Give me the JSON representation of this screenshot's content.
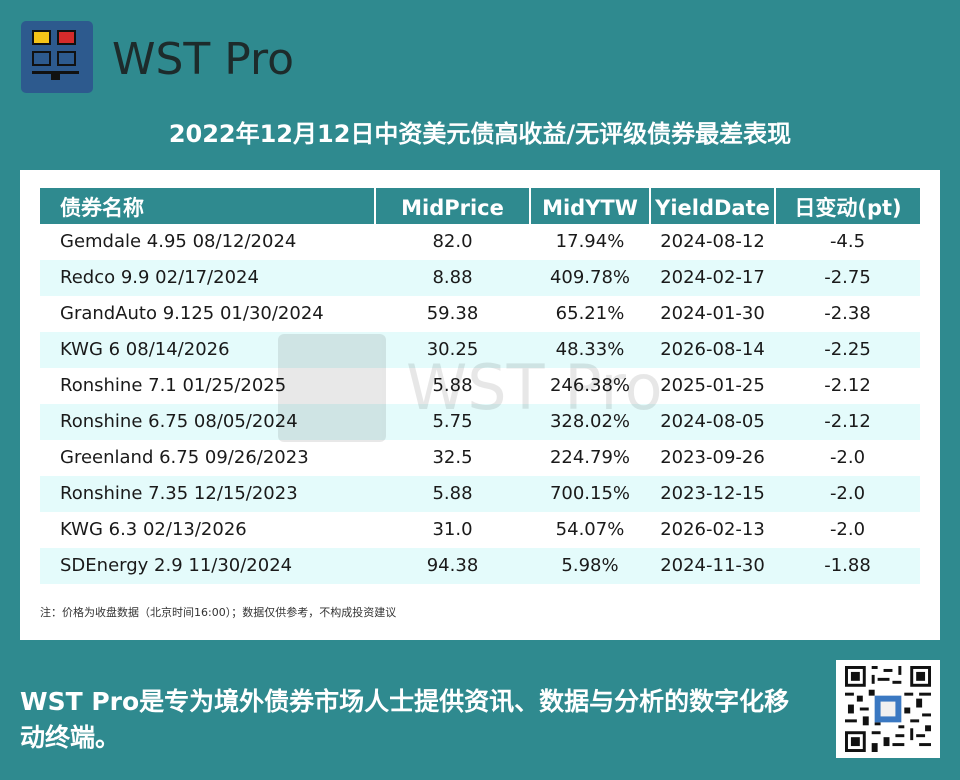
{
  "brand": {
    "name": "WST Pro",
    "logo_colors": [
      "#f5c518",
      "#d42b2b",
      "#2d5a8e",
      "#111111"
    ]
  },
  "title": "2022年12月12日中资美元债高收益/无评级债券最差表现",
  "table": {
    "columns": [
      "债券名称",
      "MidPrice",
      "MidYTW",
      "YieldDate",
      "日变动(pt)"
    ],
    "rows": [
      {
        "name": "Gemdale 4.95 08/12/2024",
        "mid_price": "82.0",
        "mid_ytw": "17.94%",
        "yield_date": "2024-08-12",
        "change": "-4.5"
      },
      {
        "name": "Redco 9.9 02/17/2024",
        "mid_price": "8.88",
        "mid_ytw": "409.78%",
        "yield_date": "2024-02-17",
        "change": "-2.75"
      },
      {
        "name": "GrandAuto 9.125 01/30/2024",
        "mid_price": "59.38",
        "mid_ytw": "65.21%",
        "yield_date": "2024-01-30",
        "change": "-2.38"
      },
      {
        "name": "KWG 6 08/14/2026",
        "mid_price": "30.25",
        "mid_ytw": "48.33%",
        "yield_date": "2026-08-14",
        "change": "-2.25"
      },
      {
        "name": "Ronshine 7.1 01/25/2025",
        "mid_price": "5.88",
        "mid_ytw": "246.38%",
        "yield_date": "2025-01-25",
        "change": "-2.12"
      },
      {
        "name": "Ronshine 6.75 08/05/2024",
        "mid_price": "5.75",
        "mid_ytw": "328.02%",
        "yield_date": "2024-08-05",
        "change": "-2.12"
      },
      {
        "name": "Greenland 6.75 09/26/2023",
        "mid_price": "32.5",
        "mid_ytw": "224.79%",
        "yield_date": "2023-09-26",
        "change": "-2.0"
      },
      {
        "name": "Ronshine 7.35 12/15/2023",
        "mid_price": "5.88",
        "mid_ytw": "700.15%",
        "yield_date": "2023-12-15",
        "change": "-2.0"
      },
      {
        "name": "KWG 6.3 02/13/2026",
        "mid_price": "31.0",
        "mid_ytw": "54.07%",
        "yield_date": "2026-02-13",
        "change": "-2.0"
      },
      {
        "name": "SDEnergy 2.9 11/30/2024",
        "mid_price": "94.38",
        "mid_ytw": "5.98%",
        "yield_date": "2024-11-30",
        "change": "-1.88"
      }
    ]
  },
  "watermark": "WST Pro",
  "note": "注：价格为收盘数据（北京时间16:00）；数据仅供参考，不构成投资建议",
  "tagline": "WST Pro是专为境外债券市场人士提供资讯、数据与分析的数字化移动终端。",
  "colors": {
    "background": "#2f8a8f",
    "header": "#2f8a8f",
    "alt_row": "#e4fbfb"
  }
}
